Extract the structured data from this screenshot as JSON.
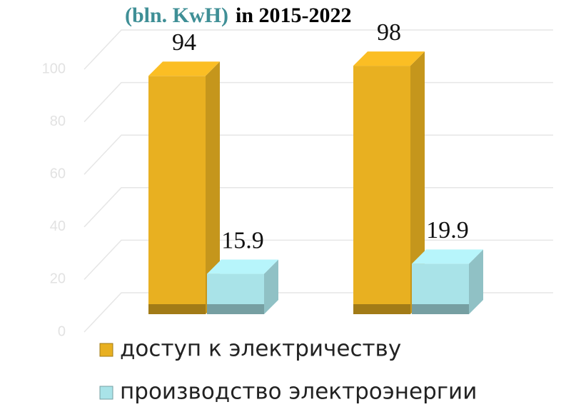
{
  "chart_data": {
    "type": "bar3d",
    "title_unit": "(bln. KwH)",
    "title": "in 2015-2022",
    "categories": [
      null,
      null
    ],
    "series": [
      {
        "name": "доступ к электричеству",
        "color": "#e8b021",
        "values": [
          94,
          98
        ]
      },
      {
        "name": "производство электроэнергии",
        "color": "#a9e3e8",
        "values": [
          15.9,
          19.9
        ]
      }
    ],
    "ylim": [
      0,
      100
    ],
    "yticks": [
      0,
      20,
      40,
      60,
      80,
      100
    ],
    "grid": true
  }
}
